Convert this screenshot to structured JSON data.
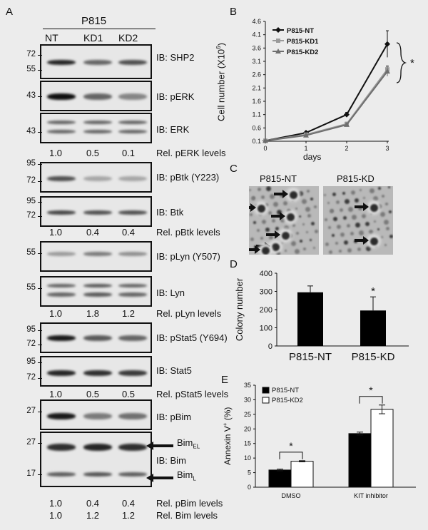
{
  "panel_a": {
    "letter": "A",
    "cell_line": "P815",
    "lanes": [
      "NT",
      "KD1",
      "KD2"
    ],
    "blots": [
      {
        "label": "IB: SHP2",
        "markers": [
          "72",
          "55"
        ],
        "intensity": [
          0.9,
          0.6,
          0.7
        ]
      },
      {
        "label": "IB: pERK",
        "markers": [
          "43"
        ],
        "intensity": [
          1.0,
          0.6,
          0.45
        ]
      },
      {
        "label": "IB: ERK",
        "markers": [
          "43"
        ],
        "intensity": [
          0.6,
          0.6,
          0.6
        ]
      },
      {
        "label": "IB: pBtk (Y223)",
        "markers": [
          "95",
          "72"
        ],
        "intensity": [
          0.7,
          0.3,
          0.3
        ]
      },
      {
        "label": "IB: Btk",
        "markers": [
          "95",
          "72"
        ],
        "intensity": [
          0.75,
          0.7,
          0.7
        ]
      },
      {
        "label": "IB: pLyn (Y507)",
        "markers": [
          "55"
        ],
        "intensity": [
          0.35,
          0.5,
          0.4
        ]
      },
      {
        "label": "IB: Lyn",
        "markers": [
          "55"
        ],
        "intensity": [
          0.6,
          0.65,
          0.6
        ]
      },
      {
        "label": "IB: pStat5 (Y694)",
        "markers": [
          "95",
          "72"
        ],
        "intensity": [
          0.95,
          0.65,
          0.6
        ]
      },
      {
        "label": "IB: Stat5",
        "markers": [
          "95",
          "72"
        ],
        "intensity": [
          0.9,
          0.85,
          0.8
        ]
      },
      {
        "label": "IB: pBim",
        "markers": [
          "27"
        ],
        "intensity": [
          0.95,
          0.5,
          0.55
        ]
      },
      {
        "label": "IB: Bim",
        "markers": [
          "27",
          "17"
        ],
        "intensity": [
          0.85,
          0.9,
          0.85
        ]
      }
    ],
    "bim_el": "Bim",
    "bim_el_sub": "EL",
    "bim_l": "Bim",
    "bim_l_sub": "L",
    "quant": [
      {
        "label": "Rel. pERK levels",
        "values": [
          "1.0",
          "0.5",
          "0.1"
        ]
      },
      {
        "label": "Rel. pBtk levels",
        "values": [
          "1.0",
          "0.4",
          "0.4"
        ]
      },
      {
        "label": "Rel. pLyn levels",
        "values": [
          "1.0",
          "1.8",
          "1.2"
        ]
      },
      {
        "label": "Rel. pStat5 levels",
        "values": [
          "1.0",
          "0.5",
          "0.5"
        ]
      },
      {
        "label": "Rel. pBim levels",
        "values": [
          "1.0",
          "0.4",
          "0.4"
        ]
      },
      {
        "label": "Rel. Bim levels",
        "values": [
          "1.0",
          "1.2",
          "1.2"
        ]
      }
    ]
  },
  "panel_b": {
    "letter": "B",
    "ylabel": "Cell number (X10",
    "ylabel_sup": "6",
    "ylabel_end": ")",
    "xlabel": "days",
    "significance": "*"
  },
  "panel_c": {
    "letter": "C",
    "images": [
      "P815-NT",
      "P815-KD"
    ]
  },
  "panel_d": {
    "letter": "D",
    "significance": "*"
  },
  "panel_e": {
    "letter": "E",
    "ylabel": "Annexin V",
    "ylabel_sup": "+",
    "ylabel_end": " (%)",
    "significance": [
      "*",
      "*"
    ]
  },
  "chart_data": [
    {
      "type": "line",
      "panel": "B",
      "ylabel": "Cell number (X10^6)",
      "xlabel": "days",
      "x": [
        0,
        1,
        2,
        3
      ],
      "xlim": [
        0,
        3
      ],
      "ylim": [
        0.1,
        4.6
      ],
      "yticks": [
        "0.1",
        "0.6",
        "1.1",
        "1.6",
        "2.1",
        "2.6",
        "3.1",
        "3.6",
        "4.1",
        "4.6"
      ],
      "xticks": [
        "0",
        "1",
        "2",
        "3"
      ],
      "legend_position": "top-left",
      "series": [
        {
          "name": "P815-NT",
          "values": [
            0.12,
            0.42,
            1.1,
            3.75
          ],
          "errors": [
            0.03,
            0.05,
            0.08,
            0.5
          ],
          "color": "#111111",
          "marker": "diamond"
        },
        {
          "name": "P815-KD1",
          "values": [
            0.12,
            0.35,
            0.75,
            2.8
          ],
          "errors": [
            0.03,
            0.04,
            0.07,
            0.15
          ],
          "color": "#9a9a9a",
          "marker": "square"
        },
        {
          "name": "P815-KD2",
          "values": [
            0.12,
            0.32,
            0.72,
            2.72
          ],
          "errors": [
            0.03,
            0.04,
            0.06,
            0.18
          ],
          "color": "#6e6e6e",
          "marker": "triangle"
        }
      ]
    },
    {
      "type": "bar",
      "panel": "D",
      "categories": [
        "P815-NT",
        "P815-KD"
      ],
      "values": [
        295,
        195
      ],
      "errors": [
        35,
        75
      ],
      "ylabel": "Colony number",
      "ylim": [
        0,
        400
      ],
      "yticks": [
        "0",
        "100",
        "200",
        "300",
        "400"
      ],
      "color": "#000000"
    },
    {
      "type": "bar",
      "panel": "E",
      "categories": [
        "DMSO",
        "KIT inhibitor"
      ],
      "series": [
        {
          "name": "P815-NT",
          "values": [
            5.9,
            18.4
          ],
          "errors": [
            0.3,
            0.5
          ],
          "color": "#000000"
        },
        {
          "name": "P815-KD2",
          "values": [
            8.9,
            26.7
          ],
          "errors": [
            0.2,
            1.5
          ],
          "color": "#ffffff"
        }
      ],
      "ylabel": "Annexin V+ (%)",
      "ylim": [
        0,
        35
      ],
      "yticks": [
        "0",
        "5",
        "10",
        "15",
        "20",
        "25",
        "30",
        "35"
      ],
      "legend_position": "top-left"
    }
  ]
}
